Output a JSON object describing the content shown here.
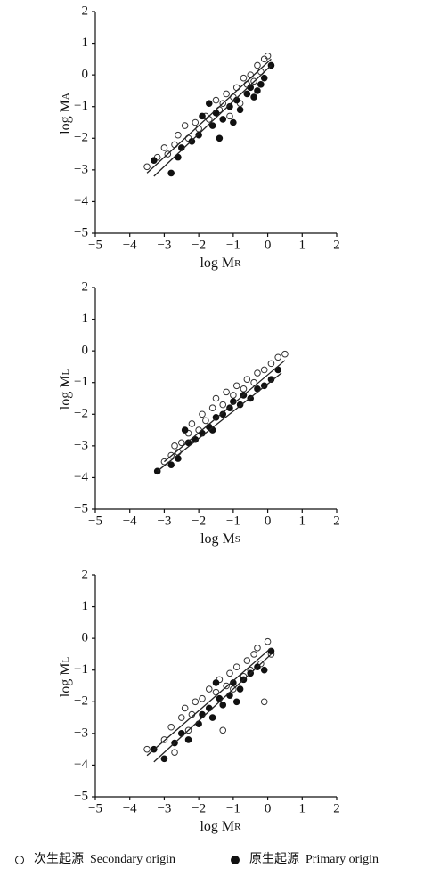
{
  "chart_data": [
    {
      "type": "scatter",
      "x_label": "log M",
      "x_label_sub": "R",
      "y_label": "log M",
      "y_label_sub": "A",
      "xlim": [
        -5,
        2
      ],
      "ylim": [
        -5,
        2
      ],
      "xticks": [
        {
          "value": -5,
          "label": "−5"
        },
        {
          "value": -4,
          "label": "−4"
        },
        {
          "value": -3,
          "label": "−3"
        },
        {
          "value": -2,
          "label": "−2"
        },
        {
          "value": -1,
          "label": "−1"
        },
        0,
        1,
        2
      ],
      "yticks": [
        {
          "value": -5,
          "label": "−5"
        },
        {
          "value": -4,
          "label": "−4"
        },
        {
          "value": -3,
          "label": "−3"
        },
        {
          "value": -2,
          "label": "−2"
        },
        {
          "value": -1,
          "label": "−1"
        },
        0,
        1,
        2
      ],
      "series": [
        {
          "marker": "open",
          "x": [
            -3.5,
            -3.2,
            -3.0,
            -2.9,
            -2.7,
            -2.6,
            -2.4,
            -2.3,
            -2.1,
            -2.0,
            -1.8,
            -1.7,
            -1.5,
            -1.4,
            -1.3,
            -1.2,
            -1.0,
            -0.9,
            -0.8,
            -0.6,
            -0.5,
            -0.4,
            -0.3,
            -0.2,
            -0.1,
            0.0,
            -0.7,
            -1.1
          ],
          "values": [
            -2.9,
            -2.6,
            -2.3,
            -2.5,
            -2.2,
            -1.9,
            -1.6,
            -2.0,
            -1.5,
            -1.7,
            -1.3,
            -1.4,
            -0.8,
            -1.1,
            -0.9,
            -0.6,
            -0.7,
            -0.4,
            -0.9,
            -0.3,
            0.0,
            -0.2,
            0.3,
            0.1,
            0.5,
            0.6,
            -0.1,
            -1.3
          ]
        },
        {
          "marker": "filled",
          "x": [
            -3.3,
            -2.8,
            -2.6,
            -2.5,
            -2.2,
            -2.0,
            -1.9,
            -1.6,
            -1.5,
            -1.4,
            -1.3,
            -1.1,
            -1.0,
            -0.9,
            -0.8,
            -0.6,
            -0.5,
            -0.4,
            -0.2,
            -0.1,
            0.1,
            -1.7,
            -0.3
          ],
          "values": [
            -2.7,
            -3.1,
            -2.6,
            -2.3,
            -2.1,
            -1.9,
            -1.3,
            -1.6,
            -1.2,
            -2.0,
            -1.4,
            -1.0,
            -1.5,
            -0.8,
            -1.1,
            -0.6,
            -0.4,
            -0.7,
            -0.3,
            -0.1,
            0.3,
            -0.9,
            -0.5
          ]
        }
      ],
      "fit_lines": [
        {
          "x": [
            -3.5,
            0.1
          ],
          "values": [
            -3.1,
            0.5
          ]
        },
        {
          "x": [
            -3.3,
            0.1
          ],
          "values": [
            -3.2,
            0.3
          ]
        }
      ]
    },
    {
      "type": "scatter",
      "x_label": "log M",
      "x_label_sub": "S",
      "y_label": "log M",
      "y_label_sub": "L",
      "xlim": [
        -5,
        2
      ],
      "ylim": [
        -5,
        2
      ],
      "xticks": [
        {
          "value": -5,
          "label": "−5"
        },
        {
          "value": -4,
          "label": "−4"
        },
        {
          "value": -3,
          "label": "−3"
        },
        {
          "value": -2,
          "label": "−2"
        },
        {
          "value": -1,
          "label": "−1"
        },
        0,
        1,
        2
      ],
      "yticks": [
        {
          "value": -5,
          "label": "−5"
        },
        {
          "value": -4,
          "label": "−4"
        },
        {
          "value": -3,
          "label": "−3"
        },
        {
          "value": -2,
          "label": "−2"
        },
        {
          "value": -1,
          "label": "−1"
        },
        0,
        1,
        2
      ],
      "series": [
        {
          "marker": "open",
          "x": [
            -3.0,
            -2.8,
            -2.7,
            -2.5,
            -2.3,
            -2.2,
            -2.0,
            -1.9,
            -1.8,
            -1.6,
            -1.5,
            -1.3,
            -1.2,
            -1.0,
            -0.9,
            -0.7,
            -0.6,
            -0.4,
            -0.3,
            -0.1,
            0.1,
            0.3,
            0.5,
            -2.6
          ],
          "values": [
            -3.5,
            -3.3,
            -3.0,
            -2.9,
            -2.6,
            -2.3,
            -2.5,
            -2.0,
            -2.2,
            -1.8,
            -1.5,
            -1.7,
            -1.3,
            -1.4,
            -1.1,
            -1.2,
            -0.9,
            -1.0,
            -0.7,
            -0.6,
            -0.4,
            -0.2,
            -0.1,
            -3.2
          ]
        },
        {
          "marker": "filled",
          "x": [
            -3.2,
            -2.8,
            -2.6,
            -2.3,
            -2.1,
            -1.9,
            -1.7,
            -1.5,
            -1.3,
            -1.1,
            -1.0,
            -0.8,
            -0.7,
            -0.5,
            -0.3,
            -0.1,
            0.1,
            0.3,
            -1.6,
            -2.4
          ],
          "values": [
            -3.8,
            -3.6,
            -3.4,
            -2.9,
            -2.8,
            -2.6,
            -2.4,
            -2.1,
            -2.0,
            -1.8,
            -1.6,
            -1.7,
            -1.4,
            -1.5,
            -1.2,
            -1.1,
            -0.9,
            -0.6,
            -2.5,
            -2.5
          ]
        }
      ],
      "fit_lines": [
        {
          "x": [
            -3.0,
            0.5
          ],
          "values": [
            -3.5,
            -0.3
          ]
        },
        {
          "x": [
            -3.2,
            0.4
          ],
          "values": [
            -3.8,
            -0.7
          ]
        }
      ]
    },
    {
      "type": "scatter",
      "x_label": "log M",
      "x_label_sub": "R",
      "y_label": "log M",
      "y_label_sub": "L",
      "xlim": [
        -5,
        2
      ],
      "ylim": [
        -5,
        2
      ],
      "xticks": [
        {
          "value": -5,
          "label": "−5"
        },
        {
          "value": -4,
          "label": "−4"
        },
        {
          "value": -3,
          "label": "−3"
        },
        {
          "value": -2,
          "label": "−2"
        },
        {
          "value": -1,
          "label": "−1"
        },
        0,
        1,
        2
      ],
      "yticks": [
        {
          "value": -5,
          "label": "−5"
        },
        {
          "value": -4,
          "label": "−4"
        },
        {
          "value": -3,
          "label": "−3"
        },
        {
          "value": -2,
          "label": "−2"
        },
        {
          "value": -1,
          "label": "−1"
        },
        0,
        1,
        2
      ],
      "series": [
        {
          "marker": "open",
          "x": [
            -3.5,
            -3.0,
            -2.8,
            -2.7,
            -2.5,
            -2.4,
            -2.2,
            -2.1,
            -1.9,
            -1.7,
            -1.5,
            -1.4,
            -1.3,
            -1.2,
            -1.1,
            -1.0,
            -0.9,
            -0.7,
            -0.6,
            -0.5,
            -0.4,
            -0.3,
            -0.2,
            0.0,
            0.1,
            -0.1,
            -2.3
          ],
          "values": [
            -3.5,
            -3.2,
            -2.8,
            -3.6,
            -2.5,
            -2.2,
            -2.4,
            -2.0,
            -1.9,
            -1.6,
            -1.7,
            -1.3,
            -2.9,
            -1.5,
            -1.1,
            -1.6,
            -0.9,
            -1.2,
            -0.7,
            -1.0,
            -0.5,
            -0.3,
            -0.8,
            -0.1,
            -0.5,
            -2.0,
            -2.9
          ]
        },
        {
          "marker": "filled",
          "x": [
            -3.3,
            -3.0,
            -2.7,
            -2.5,
            -2.3,
            -2.0,
            -1.9,
            -1.7,
            -1.6,
            -1.4,
            -1.3,
            -1.1,
            -1.0,
            -0.8,
            -0.7,
            -0.5,
            -0.3,
            -0.1,
            0.1,
            -1.5,
            -0.9
          ],
          "values": [
            -3.5,
            -3.8,
            -3.3,
            -3.0,
            -3.2,
            -2.7,
            -2.4,
            -2.2,
            -2.5,
            -1.9,
            -2.1,
            -1.8,
            -1.4,
            -1.6,
            -1.3,
            -1.1,
            -0.9,
            -1.0,
            -0.4,
            -1.4,
            -2.0
          ]
        }
      ],
      "fit_lines": [
        {
          "x": [
            -3.5,
            0.1
          ],
          "values": [
            -3.7,
            -0.3
          ]
        },
        {
          "x": [
            -3.3,
            0.1
          ],
          "values": [
            -3.9,
            -0.5
          ]
        }
      ]
    }
  ],
  "legend": [
    {
      "marker": "open",
      "label": "次生起源  Secondary origin"
    },
    {
      "marker": "filled",
      "label": "原生起源  Primary origin"
    }
  ]
}
